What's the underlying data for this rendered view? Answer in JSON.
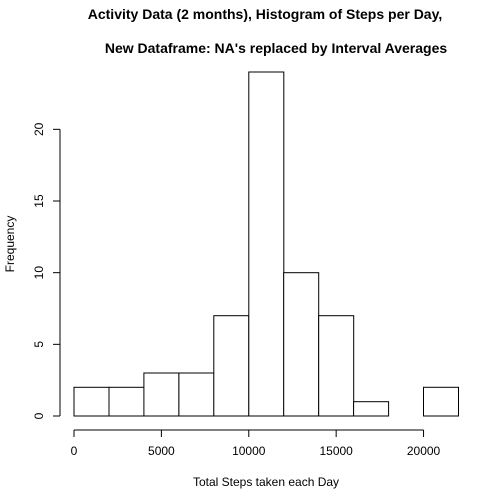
{
  "chart_data": {
    "type": "bar",
    "title": "Activity Data (2 months), Histogram of Steps per Day,",
    "subtitle": "New Dataframe:  NA's replaced by Interval Averages",
    "xlabel": "Total Steps taken each Day",
    "ylabel": "Frequency",
    "bin_edges": [
      0,
      2000,
      4000,
      6000,
      8000,
      10000,
      12000,
      14000,
      16000,
      18000,
      20000,
      22000
    ],
    "values": [
      2,
      2,
      3,
      3,
      7,
      24,
      10,
      7,
      1,
      0,
      2
    ],
    "xlim": [
      0,
      22000
    ],
    "ylim": [
      0,
      24
    ],
    "xticks": [
      0,
      5000,
      10000,
      15000,
      20000
    ],
    "xtick_labels": [
      "0",
      "5000",
      "10000",
      "15000",
      "20000"
    ],
    "yticks": [
      0,
      5,
      10,
      15,
      20
    ],
    "ytick_labels": [
      "0",
      "5",
      "10",
      "15",
      "20"
    ],
    "bar_fill": "#ffffff",
    "bar_stroke": "#000000",
    "grid": false,
    "legend": "none"
  }
}
